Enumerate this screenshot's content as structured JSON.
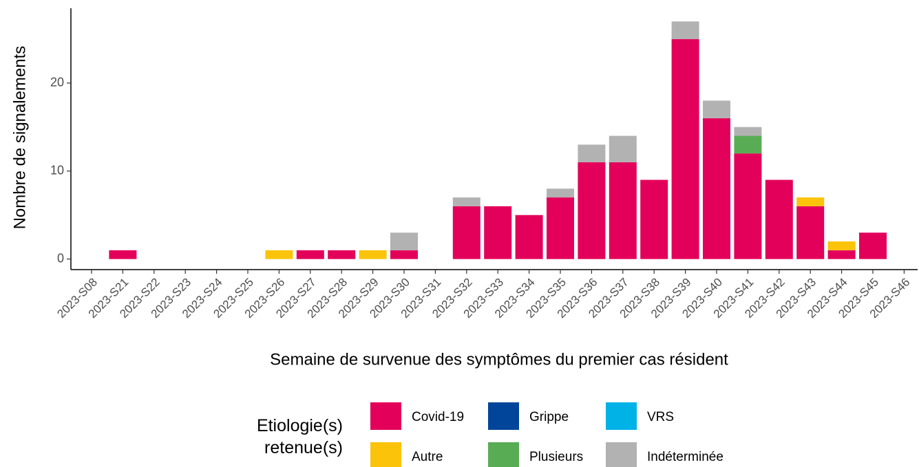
{
  "chart_data": {
    "type": "stacked-bar",
    "x_label": "Semaine de survenue des symptômes du premier cas résident",
    "y_label": "Nombre de signalements",
    "legend_title": "Etiologie(s) retenue(s)",
    "categories": [
      "2023-S08",
      "2023-S21",
      "2023-S22",
      "2023-S23",
      "2023-S24",
      "2023-S25",
      "2023-S26",
      "2023-S27",
      "2023-S28",
      "2023-S29",
      "2023-S30",
      "2023-S31",
      "2023-S32",
      "2023-S33",
      "2023-S34",
      "2023-S35",
      "2023-S36",
      "2023-S37",
      "2023-S38",
      "2023-S39",
      "2023-S40",
      "2023-S41",
      "2023-S42",
      "2023-S43",
      "2023-S44",
      "2023-S45",
      "2023-S46"
    ],
    "series": [
      {
        "name": "Covid-19",
        "color": "#e3005a",
        "values": [
          0,
          1,
          0,
          0,
          0,
          0,
          0,
          1,
          1,
          0,
          1,
          0,
          6,
          6,
          5,
          7,
          11,
          11,
          9,
          25,
          16,
          12,
          9,
          6,
          1,
          3,
          0
        ]
      },
      {
        "name": "Autre",
        "color": "#fbc40a",
        "values": [
          0,
          0,
          0,
          0,
          0,
          0,
          1,
          0,
          0,
          1,
          0,
          0,
          0,
          0,
          0,
          0,
          0,
          0,
          0,
          0,
          0,
          0,
          0,
          1,
          1,
          0,
          0
        ]
      },
      {
        "name": "Grippe",
        "color": "#00459a",
        "values": [
          0,
          0,
          0,
          0,
          0,
          0,
          0,
          0,
          0,
          0,
          0,
          0,
          0,
          0,
          0,
          0,
          0,
          0,
          0,
          0,
          0,
          0,
          0,
          0,
          0,
          0,
          0
        ]
      },
      {
        "name": "Plusieurs",
        "color": "#58ad54",
        "values": [
          0,
          0,
          0,
          0,
          0,
          0,
          0,
          0,
          0,
          0,
          0,
          0,
          0,
          0,
          0,
          0,
          0,
          0,
          0,
          0,
          0,
          2,
          0,
          0,
          0,
          0,
          0
        ]
      },
      {
        "name": "VRS",
        "color": "#00b2e6",
        "values": [
          0,
          0,
          0,
          0,
          0,
          0,
          0,
          0,
          0,
          0,
          0,
          0,
          0,
          0,
          0,
          0,
          0,
          0,
          0,
          0,
          0,
          0,
          0,
          0,
          0,
          0,
          0
        ]
      },
      {
        "name": "Indéterminée",
        "color": "#b2b2b2",
        "values": [
          0,
          0,
          0,
          0,
          0,
          0,
          0,
          0,
          0,
          0,
          2,
          0,
          1,
          0,
          0,
          1,
          2,
          3,
          0,
          2,
          2,
          1,
          0,
          0,
          0,
          0,
          0
        ]
      }
    ],
    "ylim": [
      -1.2,
      28.5
    ],
    "yticks": [
      0,
      10,
      20
    ],
    "grid": false
  }
}
